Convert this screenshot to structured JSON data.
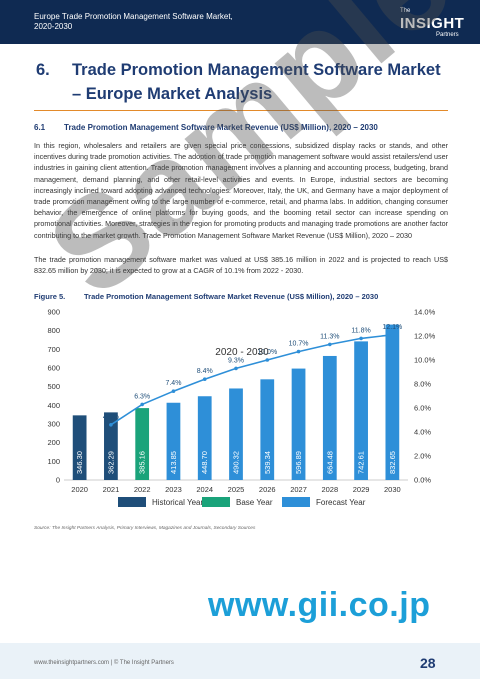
{
  "header": {
    "report_title_line1": "Europe Trade Promotion Management Software Market,",
    "report_title_line2": "2020-2030",
    "logo_the": "The",
    "logo_insight": "INSIGHT",
    "logo_partners": "Partners"
  },
  "section": {
    "number": "6.",
    "title": "Trade Promotion Management Software Market – Europe Market Analysis"
  },
  "subsection": {
    "number": "6.1",
    "title": "Trade Promotion Management Software Market Revenue (US$ Million), 2020 – 2030"
  },
  "paragraph1": "In this region, wholesalers and retailers are given special price concessions, subsidized display racks or stands, and other incentives during trade promotion activities. The adoption of trade promotion management software would assist retailers/end user industries in gaining client attention. Trade promotion management involves a planning and accounting process, budgeting, brand management, demand planning, and other retail-level activities and events. In Europe, industrial sectors are becoming increasingly inclined toward adopting advanced technologies. Moreover, Italy, the UK, and Germany have a major deployment of trade promotion management owing to the large number of e-commerce, retail, and pharma labs. In addition, changing consumer behavior, the emergence of online platforms for buying goods, and the booming retail sector can increase spending on promotional activities. Moreover, strategies in the region for promoting products and managing trade promotions are another factor contributing to the market growth. Trade Promotion Management Software Market Revenue (US$ Million), 2020 – 2030",
  "paragraph2": "The trade promotion management software market was valued at US$ 385.16 million in 2022 and is projected to reach US$ 832.65 million by 2030; it is expected to grow at a CAGR of 10.1% from 2022 - 2030.",
  "figure": {
    "number": "Figure 5.",
    "title": "Trade Promotion Management Software Market Revenue (US$ Million), 2020 – 2030"
  },
  "chart_data": {
    "type": "bar",
    "categories": [
      "2020",
      "2021",
      "2022",
      "2023",
      "2024",
      "2025",
      "2026",
      "2027",
      "2028",
      "2029",
      "2030"
    ],
    "series": [
      {
        "values": [
          346.3,
          362.29,
          385.16,
          413.85,
          448.7,
          490.32,
          539.34,
          596.89,
          664.48,
          742.61,
          832.65
        ]
      },
      {
        "values": [
          null,
          4.6,
          6.3,
          7.4,
          8.4,
          9.3,
          10.0,
          10.7,
          11.3,
          11.8,
          12.1
        ]
      }
    ],
    "bar_labels": [
      "346.30",
      "362.29",
      "385.16",
      "413.85",
      "448.70",
      "490.32",
      "539.34",
      "596.89",
      "664.48",
      "742.61",
      "832.65"
    ],
    "growth_labels": [
      "",
      "4.6%",
      "6.3%",
      "7.4%",
      "8.4%",
      "9.3%",
      "10.0%",
      "10.7%",
      "11.3%",
      "11.8%",
      "12.1%"
    ],
    "bar_kind": [
      "historical",
      "historical",
      "base",
      "forecast",
      "forecast",
      "forecast",
      "forecast",
      "forecast",
      "forecast",
      "forecast",
      "forecast"
    ],
    "ylim": [
      0,
      900
    ],
    "y_ticks": [
      0,
      100,
      200,
      300,
      400,
      500,
      600,
      700,
      800,
      900
    ],
    "y2lim": [
      0,
      14
    ],
    "y2_ticks": [
      "0.0%",
      "2.0%",
      "4.0%",
      "6.0%",
      "8.0%",
      "10.0%",
      "12.0%",
      "14.0%"
    ],
    "cagr_label": "2020 - 2030",
    "legend": [
      {
        "label": "Historical Year",
        "color": "#1f4e79"
      },
      {
        "label": "Base Year",
        "color": "#1aa37a"
      },
      {
        "label": "Forecast Year",
        "color": "#2e8fd8"
      }
    ],
    "line_color": "#2e8fd8",
    "legend_position": "bottom",
    "grid": false
  },
  "source": "Source: The Insight Partners Analysis, Primary Interviews, Magazines and Journals, Secondary Sources",
  "watermark": "Sample",
  "gii_url": "www.gii.co.jp",
  "footer": {
    "text": "www.theinsightpartners.com  |  © The Insight Partners",
    "page_number": "28"
  }
}
